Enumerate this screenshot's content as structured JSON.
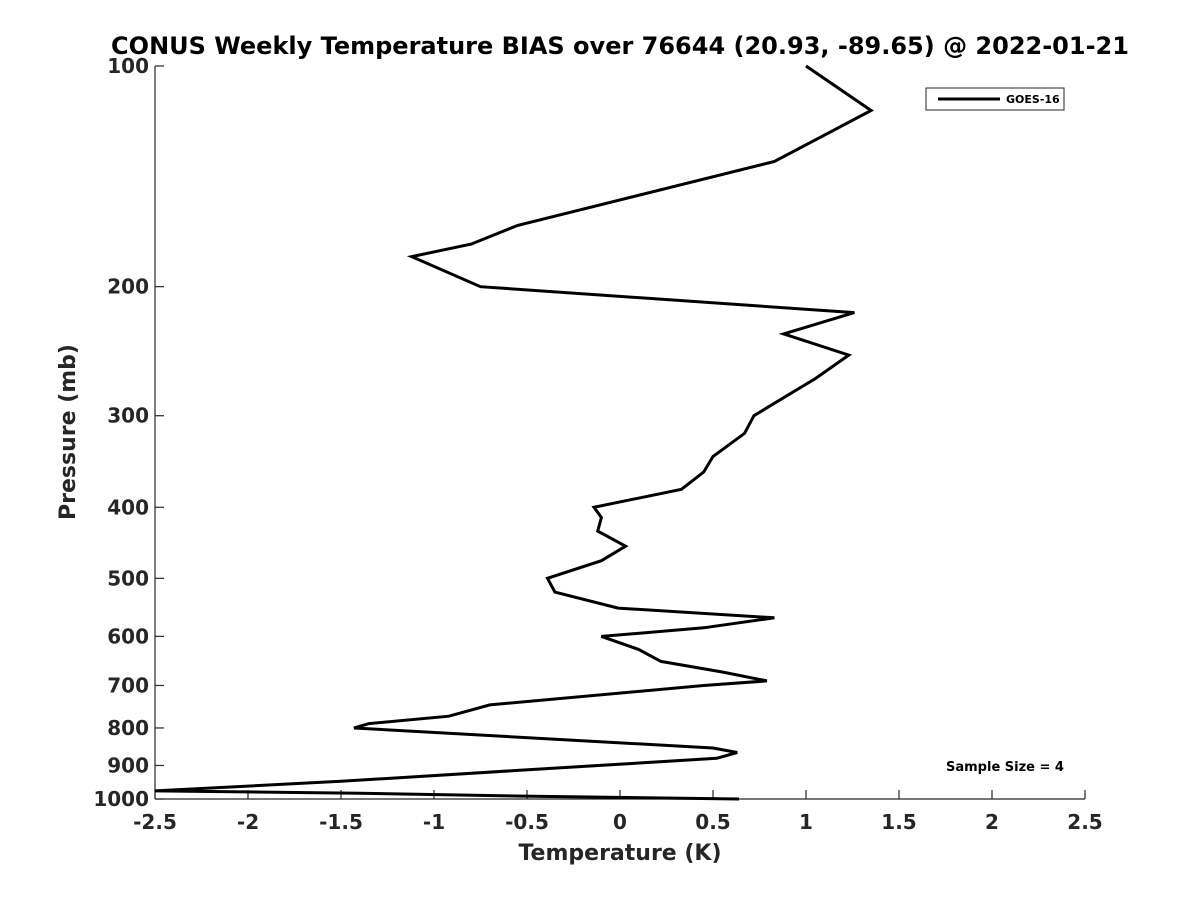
{
  "chart_data": {
    "type": "line",
    "title": "CONUS Weekly Temperature BIAS over 76644 (20.93, -89.65) @ 2022-01-21",
    "xlabel": "Temperature (K)",
    "ylabel": "Pressure (mb)",
    "xlim": [
      -2.5,
      2.5
    ],
    "ylim": [
      100,
      1000
    ],
    "y_scale": "log",
    "y_reversed": true,
    "x_ticks": [
      -2.5,
      -2,
      -1.5,
      -1,
      -0.5,
      0,
      0.5,
      1,
      1.5,
      2,
      2.5
    ],
    "x_tick_labels": [
      "-2.5",
      "-2",
      "-1.5",
      "-1",
      "-0.5",
      "0",
      "0.5",
      "1",
      "1.5",
      "2",
      "2.5"
    ],
    "y_ticks": [
      100,
      200,
      300,
      400,
      500,
      600,
      700,
      800,
      900,
      1000
    ],
    "y_tick_labels": [
      "100",
      "200",
      "300",
      "400",
      "500",
      "600",
      "700",
      "800",
      "900",
      "1000"
    ],
    "grid": false,
    "legend_position": "top-right",
    "series": [
      {
        "name": "GOES-16",
        "color": "#000000",
        "points": [
          {
            "x": 1.0,
            "y": 100
          },
          {
            "x": 1.35,
            "y": 115
          },
          {
            "x": 0.83,
            "y": 135
          },
          {
            "x": -0.55,
            "y": 165
          },
          {
            "x": -0.8,
            "y": 175
          },
          {
            "x": -1.12,
            "y": 182
          },
          {
            "x": -0.75,
            "y": 200
          },
          {
            "x": 1.26,
            "y": 217
          },
          {
            "x": 0.88,
            "y": 232
          },
          {
            "x": 1.23,
            "y": 248
          },
          {
            "x": 1.05,
            "y": 267
          },
          {
            "x": 0.72,
            "y": 300
          },
          {
            "x": 0.67,
            "y": 317
          },
          {
            "x": 0.5,
            "y": 341
          },
          {
            "x": 0.45,
            "y": 358
          },
          {
            "x": 0.33,
            "y": 378
          },
          {
            "x": -0.14,
            "y": 400
          },
          {
            "x": -0.1,
            "y": 413
          },
          {
            "x": -0.12,
            "y": 431
          },
          {
            "x": 0.03,
            "y": 452
          },
          {
            "x": -0.1,
            "y": 473
          },
          {
            "x": -0.39,
            "y": 500
          },
          {
            "x": -0.35,
            "y": 522
          },
          {
            "x": -0.01,
            "y": 549
          },
          {
            "x": 0.83,
            "y": 566
          },
          {
            "x": 0.45,
            "y": 584
          },
          {
            "x": -0.1,
            "y": 600
          },
          {
            "x": 0.1,
            "y": 625
          },
          {
            "x": 0.22,
            "y": 649
          },
          {
            "x": 0.55,
            "y": 671
          },
          {
            "x": 0.79,
            "y": 690
          },
          {
            "x": 0.45,
            "y": 700
          },
          {
            "x": -0.7,
            "y": 744
          },
          {
            "x": -0.92,
            "y": 771
          },
          {
            "x": -1.35,
            "y": 789
          },
          {
            "x": -1.43,
            "y": 800
          },
          {
            "x": 0.5,
            "y": 852
          },
          {
            "x": 0.63,
            "y": 864
          },
          {
            "x": 0.52,
            "y": 880
          },
          {
            "x": -0.55,
            "y": 914
          },
          {
            "x": -1.5,
            "y": 946
          },
          {
            "x": -2.5,
            "y": 975
          },
          {
            "x": -1.4,
            "y": 982
          },
          {
            "x": -0.52,
            "y": 991
          },
          {
            "x": 0.64,
            "y": 1000
          }
        ]
      }
    ],
    "annotations": [
      "Sample Size = 4"
    ]
  }
}
